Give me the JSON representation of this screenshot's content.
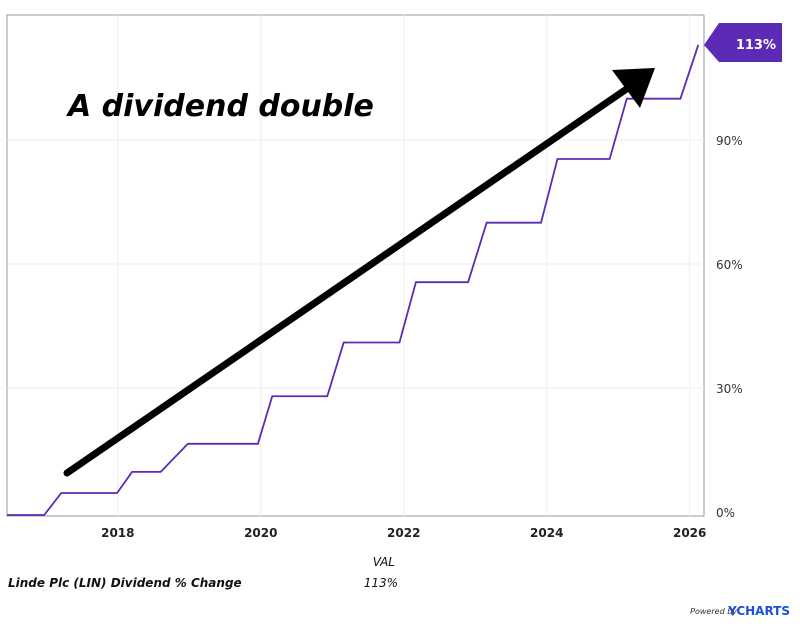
{
  "chart_data": {
    "type": "line",
    "title": "",
    "annotation": "A dividend double",
    "xlabel": "",
    "ylabel": "",
    "xlim": [
      2016.45,
      2026.2
    ],
    "ylim": [
      0,
      113
    ],
    "x_ticks": [
      "2018",
      "2020",
      "2022",
      "2024",
      "2026"
    ],
    "x_tick_values": [
      2018,
      2020,
      2022,
      2024,
      2026
    ],
    "y_ticks": [
      "0%",
      "30%",
      "60%",
      "90%"
    ],
    "y_tick_values": [
      0,
      30,
      60,
      90
    ],
    "grid": true,
    "series": [
      {
        "name": "Linde Plc (LIN) Dividend % Change",
        "color": "#5b2bb5",
        "x": [
          2016.45,
          2016.97,
          2017.21,
          2017.99,
          2018.2,
          2018.6,
          2018.98,
          2019.96,
          2020.16,
          2020.93,
          2021.16,
          2021.94,
          2022.17,
          2022.9,
          2023.16,
          2023.92,
          2024.15,
          2024.88,
          2025.12,
          2025.87,
          2026.12
        ],
        "y": [
          0,
          0,
          4.6,
          4.6,
          9.7,
          9.7,
          16.5,
          16.5,
          28,
          28,
          41,
          41,
          55.6,
          55.6,
          70,
          70,
          85.4,
          85.4,
          100,
          100,
          113
        ]
      }
    ],
    "last_value_label": "113%",
    "legend": {
      "header": "VAL",
      "rows": [
        {
          "name": "Linde Plc (LIN) Dividend % Change",
          "value": "113%"
        }
      ]
    }
  },
  "footer": {
    "powered": "Powered by",
    "brand": "YCHARTS"
  },
  "colors": {
    "accent": "#5b2bb5",
    "brand": "#1a4fd6"
  }
}
